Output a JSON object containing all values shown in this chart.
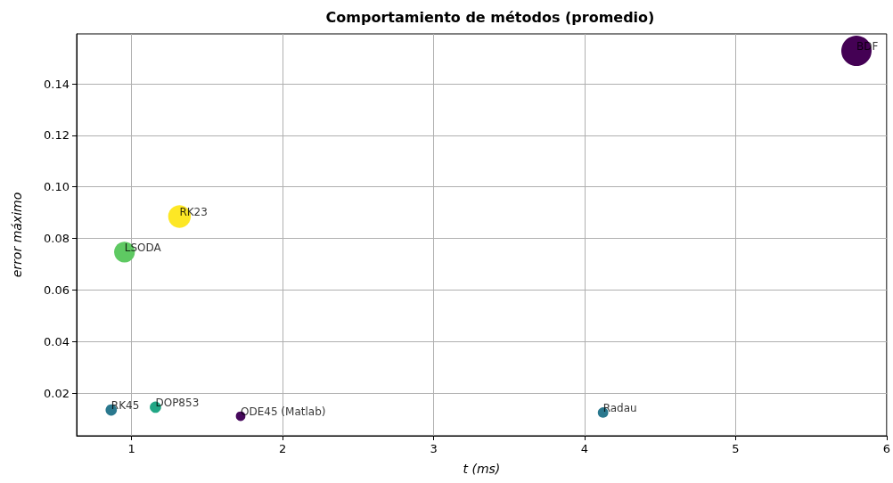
{
  "chart_data": {
    "type": "bubble",
    "title": "Comportamiento de métodos (promedio)",
    "xlabel": "t (ms)",
    "ylabel": "error máximo",
    "x": [
      0.865,
      1.158,
      1.722,
      4.122,
      0.953,
      1.317,
      5.8
    ],
    "values": [
      0.0134,
      0.0145,
      0.011,
      0.0124,
      0.0747,
      0.0885,
      0.1528
    ],
    "sizes": [
      0.14,
      0.14,
      0.1,
      0.12,
      0.47,
      0.56,
      1
    ],
    "colors": [
      "#2a788e",
      "#21a685",
      "#46085c",
      "#2a788e",
      "#5ec962",
      "#fde725",
      "#440154"
    ],
    "annotations": [
      {
        "text": "RK45",
        "x": 0.865,
        "y": 0.0134
      },
      {
        "text": "DOP853",
        "x": 1.158,
        "y": 0.0145
      },
      {
        "text": "ODE45 (Matlab)",
        "x": 1.722,
        "y": 0.011
      },
      {
        "text": "Radau",
        "x": 4.122,
        "y": 0.0124
      },
      {
        "text": "LSODA",
        "x": 0.953,
        "y": 0.0747
      },
      {
        "text": "RK23",
        "x": 1.317,
        "y": 0.0885
      },
      {
        "text": "BDF",
        "x": 5.8,
        "y": 0.1528
      }
    ],
    "xlim": [
      0.636,
      6
    ],
    "xticks": [
      1,
      2,
      3,
      4,
      5,
      6
    ],
    "ylim": [
      0.0034,
      0.1594
    ],
    "yticks": [
      0.02,
      0.04,
      0.06,
      0.08,
      {
        "value": 0.1,
        "label": "0.10"
      },
      0.12,
      0.14
    ],
    "grid": true
  }
}
